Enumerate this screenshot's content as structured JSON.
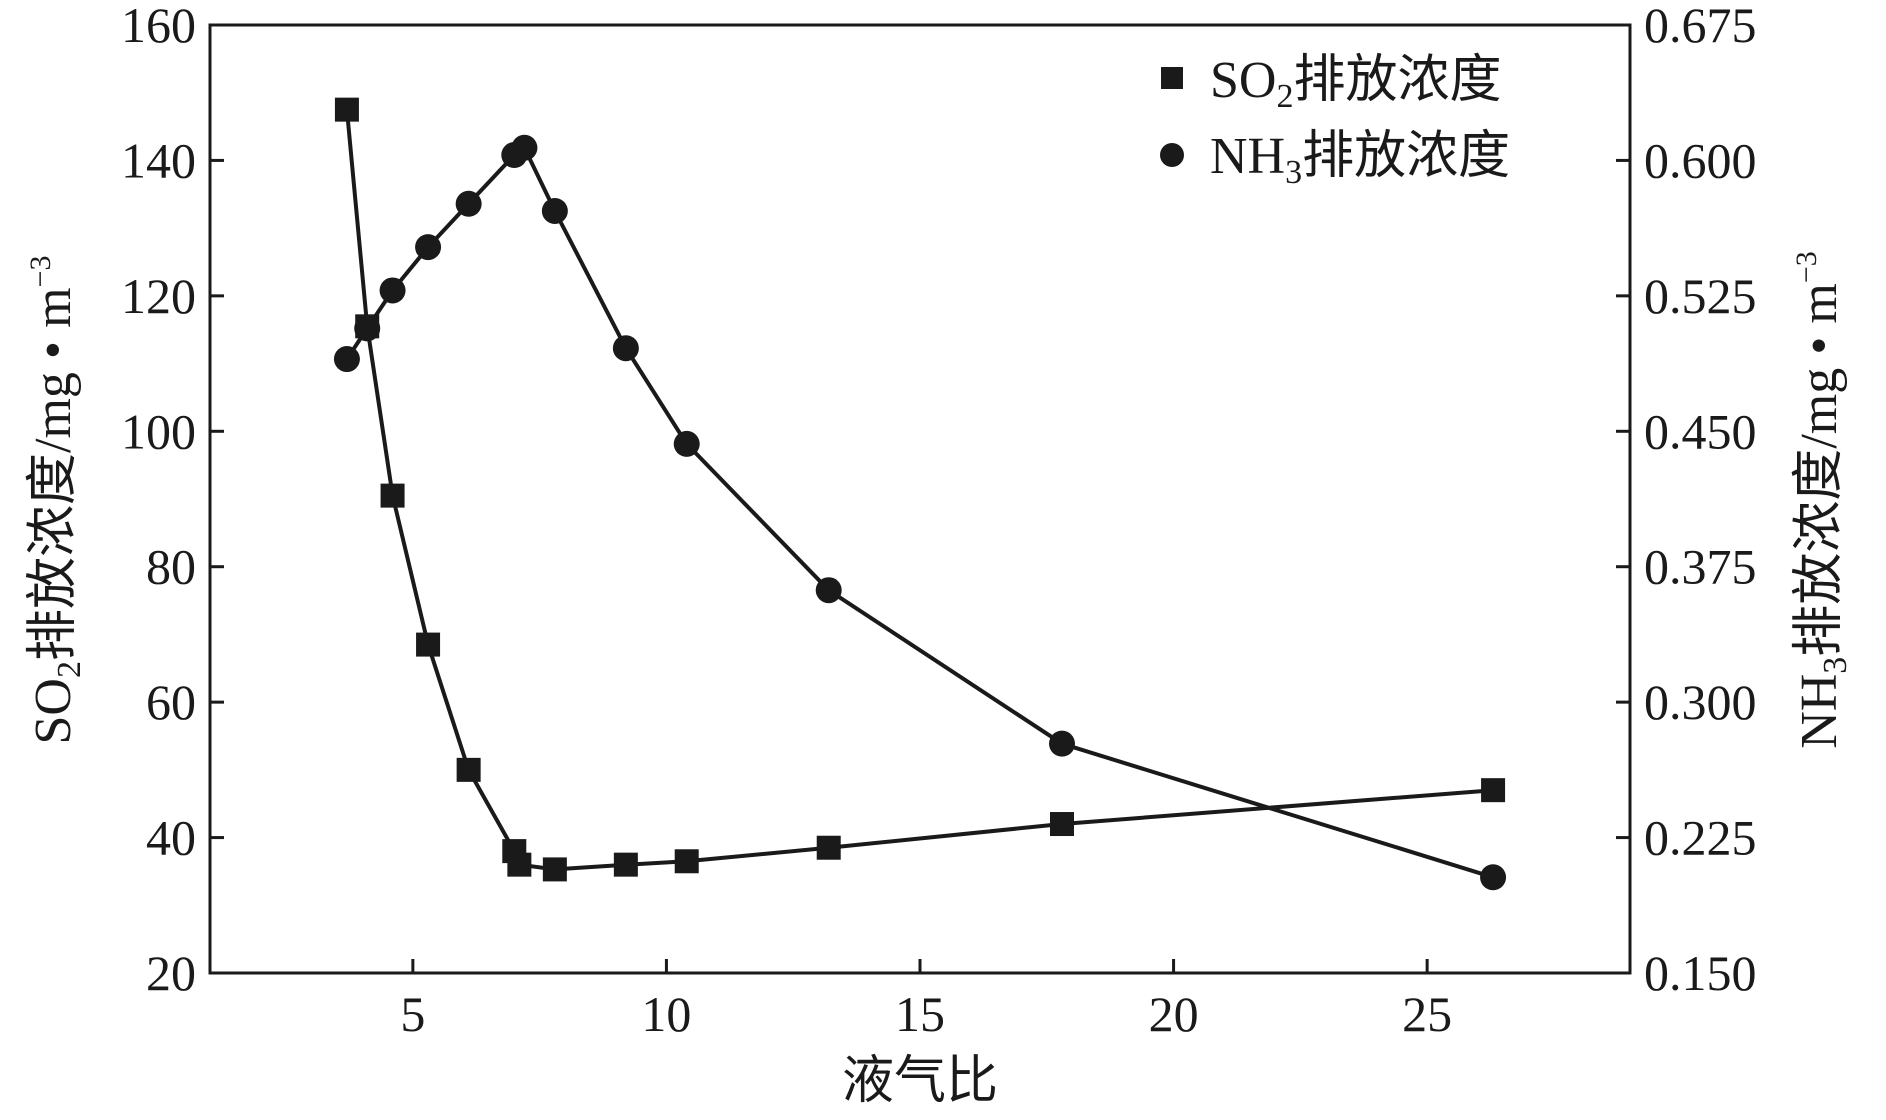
{
  "chart_data": {
    "type": "line",
    "xlabel": "液气比",
    "xlim": [
      1,
      29
    ],
    "xticks": [
      5,
      10,
      15,
      20,
      25
    ],
    "y_left": {
      "label_parts": {
        "pre": "SO",
        "sub": "2",
        "main": "排放浓度/mg • m",
        "sup": "−3"
      },
      "lim": [
        20,
        160
      ],
      "ticks": [
        "20",
        "40",
        "60",
        "80",
        "100",
        "120",
        "140",
        "160"
      ]
    },
    "y_right": {
      "label_parts": {
        "pre": "NH",
        "sub": "3",
        "main": "排放浓度/mg • m",
        "sup": "−3"
      },
      "lim": [
        0.15,
        0.675
      ],
      "ticks": [
        "0.150",
        "0.225",
        "0.300",
        "0.375",
        "0.450",
        "0.525",
        "0.600",
        "0.675"
      ]
    },
    "legend_position": "top-right",
    "series": [
      {
        "name": "SO2排放浓度",
        "legend_parts": {
          "pre": "SO",
          "sub": "2",
          "main": "排放浓度"
        },
        "axis": "left",
        "marker": "square",
        "x": [
          3.7,
          4.1,
          4.6,
          5.3,
          6.1,
          7.0,
          7.1,
          7.8,
          9.2,
          10.4,
          13.2,
          17.8,
          26.3
        ],
        "y": [
          147.5,
          115.5,
          90.5,
          68.5,
          50.0,
          38.0,
          36.0,
          35.3,
          36.0,
          36.5,
          38.5,
          42.0,
          47.0
        ]
      },
      {
        "name": "NH3排放浓度",
        "legend_parts": {
          "pre": "NH",
          "sub": "3",
          "main": "排放浓度"
        },
        "axis": "right",
        "marker": "circle",
        "x": [
          3.7,
          4.1,
          4.6,
          5.3,
          6.1,
          7.0,
          7.2,
          7.8,
          9.2,
          10.4,
          13.2,
          17.8,
          26.3
        ],
        "y": [
          0.49,
          0.507,
          0.528,
          0.552,
          0.576,
          0.603,
          0.607,
          0.572,
          0.496,
          0.443,
          0.362,
          0.277,
          0.203
        ]
      }
    ]
  }
}
